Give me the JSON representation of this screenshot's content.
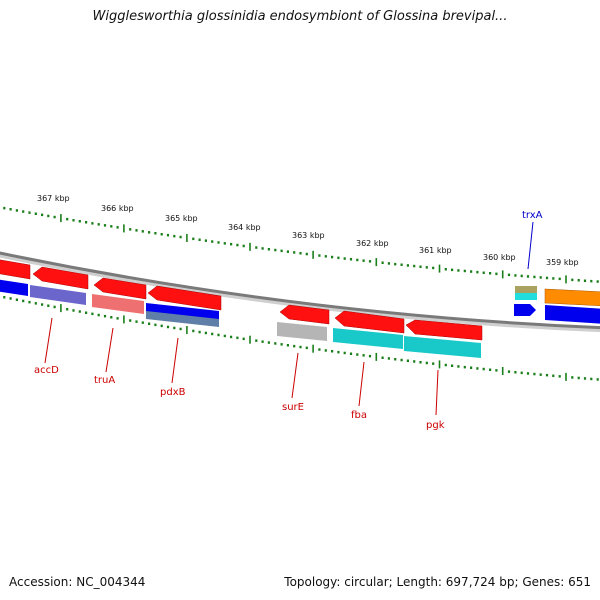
{
  "title": "Wigglesworthia glossinidia endosymbiont of Glossina brevipal...",
  "footer": {
    "accession": "Accession: NC_004344",
    "stats": "Topology: circular; Length: 697,724 bp; Genes: 651"
  },
  "scale_labels": [
    "367 kbp",
    "366 kbp",
    "365 kbp",
    "364 kbp",
    "363 kbp",
    "362 kbp",
    "361 kbp",
    "360 kbp",
    "359 kbp"
  ],
  "gene_labels": [
    {
      "name": "accD",
      "color": "#cc0000"
    },
    {
      "name": "truA",
      "color": "#cc0000"
    },
    {
      "name": "pdxB",
      "color": "#cc0000"
    },
    {
      "name": "surE",
      "color": "#cc0000"
    },
    {
      "name": "fba",
      "color": "#cc0000"
    },
    {
      "name": "pgk",
      "color": "#cc0000"
    },
    {
      "name": "trxA",
      "color": "#0000cc"
    }
  ],
  "colors": {
    "backbone": "#8a8a8a",
    "tick": "#1a7f1a",
    "red": "#ff1010",
    "blue": "#0000ee",
    "slate": "#6a66cc",
    "salmon": "#ee7070",
    "gray": "#b5b5b5",
    "teal": "#19c8c8",
    "orange": "#ff8c00",
    "olive": "#a9a260",
    "cyan": "#22dddd"
  }
}
